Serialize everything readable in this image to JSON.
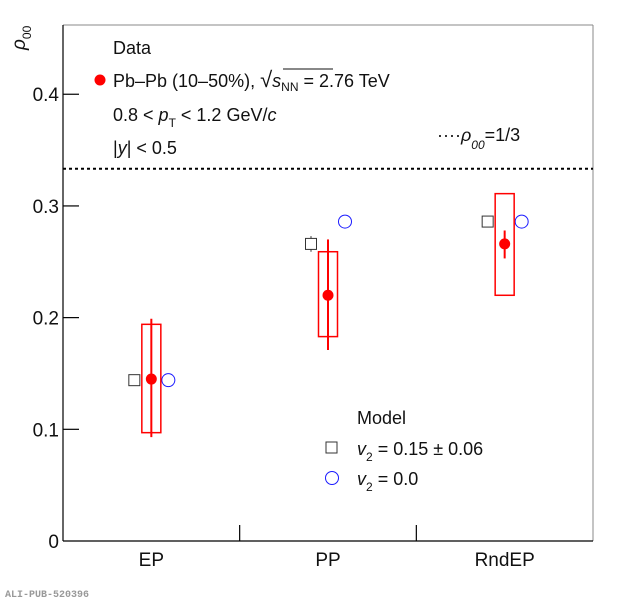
{
  "chart_data": {
    "type": "scatter",
    "title": "",
    "ylabel": "ρ00",
    "xlabel": "",
    "ylim": [
      0,
      0.462
    ],
    "yticks": [
      0,
      0.1,
      0.2,
      0.3,
      0.4
    ],
    "ytick_labels": [
      "0",
      "0.1",
      "0.2",
      "0.3",
      "0.4"
    ],
    "categories": [
      "EP",
      "PP",
      "RndEP"
    ],
    "reference_line": {
      "value": 0.3333,
      "label_prefix": "····",
      "label_symbol": "ρ",
      "label_sub": "00",
      "label_suffix": "=1/3",
      "style": "dotted"
    },
    "legend_data": {
      "heading": "Data",
      "entry": "Pb–Pb (10–50%), ",
      "energy_root": "s",
      "energy_sub": "NN",
      "energy_value": " = 2.76 TeV",
      "kinematics_1_pre": "0.8 < ",
      "kinematics_1_var": "p",
      "kinematics_1_sub": "T",
      "kinematics_1_post": " < 1.2 GeV/",
      "kinematics_1_unit": "c",
      "kinematics_2_pre": "|",
      "kinematics_2_var": "y",
      "kinematics_2_post": "| < 0.5",
      "placement": "top-left"
    },
    "legend_model": {
      "heading": "Model",
      "entries": [
        {
          "var": "v",
          "sub": "2",
          "text": " = 0.15 ± 0.06",
          "marker": "open-square"
        },
        {
          "var": "v",
          "sub": "2",
          "text": " = 0.0",
          "marker": "open-circle"
        }
      ],
      "placement": "bottom-right"
    },
    "series": [
      {
        "name": "Data Pb–Pb (10–50%)",
        "marker": "filled-circle",
        "color": "#ff0000",
        "values": [
          0.145,
          0.22,
          0.266
        ],
        "stat_err_low": [
          0.093,
          0.171,
          0.253
        ],
        "stat_err_high": [
          0.199,
          0.27,
          0.278
        ],
        "syst_low": [
          0.097,
          0.183,
          0.22
        ],
        "syst_high": [
          0.194,
          0.259,
          0.311
        ]
      },
      {
        "name": "Model v2 = 0.15 ± 0.06",
        "marker": "open-square",
        "color": "#333333",
        "values": [
          0.144,
          0.266,
          0.286
        ],
        "err": [
          0.0,
          0.007,
          0.0
        ]
      },
      {
        "name": "Model v2 = 0.0",
        "marker": "open-circle",
        "color": "#1a1aff",
        "values": [
          0.144,
          0.286,
          0.286
        ]
      }
    ]
  },
  "watermark": "ALI-PUB-520396",
  "colors": {
    "data": "#ff0000",
    "model_square": "#333333",
    "model_circle": "#1a1aff",
    "axis": "#000000"
  }
}
